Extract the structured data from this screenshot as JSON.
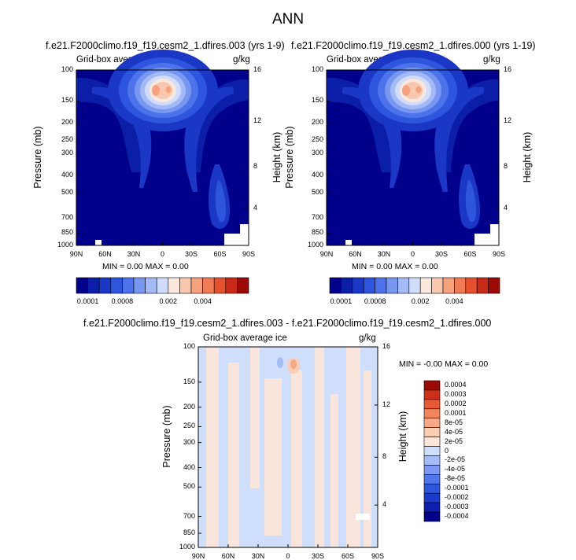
{
  "page_title": "ANN",
  "panel_label_field": "Grid-box average ice",
  "units": "g/kg",
  "y_axis_left": {
    "title": "Pressure (mb)",
    "ticks": [
      "100",
      "150",
      "200",
      "250",
      "300",
      "400",
      "500",
      "700",
      "850",
      "1000"
    ]
  },
  "y_axis_right": {
    "title": "Height (km)",
    "ticks": [
      "16",
      "12",
      "8",
      "4"
    ]
  },
  "x_axis": {
    "ticks": [
      "90N",
      "60N",
      "30N",
      "0",
      "30S",
      "60S",
      "90S"
    ]
  },
  "colors": {
    "scale": [
      "#00008b",
      "#0a1ea8",
      "#1b37c6",
      "#2e55dd",
      "#4d73ea",
      "#7797f1",
      "#a3baf6",
      "#cfdcfb",
      "#fbe8dd",
      "#f9c7ad",
      "#f6a27e",
      "#f07c55",
      "#e5512e",
      "#c82a17",
      "#9b0a06"
    ],
    "diff_scale": [
      "#00008b",
      "#0d1fae",
      "#1a3bc9",
      "#2c57dc",
      "#4f76ea",
      "#7a98f1",
      "#a6bcf6",
      "#cfdefb",
      "#fde6d8",
      "#fbcdb2",
      "#f7a985",
      "#f2855d",
      "#e75a35",
      "#cd2f19",
      "#9b0a06"
    ]
  },
  "chart_data": [
    {
      "type": "heatmap",
      "title": "f.e21.F2000climo.f19_f19.cesm2_1.dfires.003 (yrs 1-9)",
      "field": "Grid-box average ice",
      "units": "g/kg",
      "ylabel": "Pressure (mb)",
      "ylabel_right": "Height (km)",
      "xlim": [
        "90N",
        "90S"
      ],
      "ylim": [
        1000,
        100
      ],
      "min_text": "MIN =   0.00   MAX =   0.00",
      "colorbar_labels": [
        "0.0001",
        "0.0008",
        "0.002",
        "0.004"
      ]
    },
    {
      "type": "heatmap",
      "title": "f.e21.F2000climo.f19_f19.cesm2_1.dfires.000 (yrs 1-19)",
      "field": "Grid-box average ice",
      "units": "g/kg",
      "ylabel": "Pressure (mb)",
      "ylabel_right": "Height (km)",
      "xlim": [
        "90N",
        "90S"
      ],
      "ylim": [
        1000,
        100
      ],
      "min_text": "MIN =   0.00   MAX =   0.00",
      "colorbar_labels": [
        "0.0001",
        "0.0008",
        "0.002",
        "0.004"
      ]
    },
    {
      "type": "heatmap",
      "title": "f.e21.F2000climo.f19_f19.cesm2_1.dfires.003 - f.e21.F2000climo.f19_f19.cesm2_1.dfires.000",
      "field": "Grid-box average ice",
      "units": "g/kg",
      "ylabel": "Pressure (mb)",
      "ylabel_right": "Height (km)",
      "xlim": [
        "90N",
        "90S"
      ],
      "ylim": [
        1000,
        100
      ],
      "min_text": "MIN =  -0.00   MAX =   0.00",
      "colorbar_labels": [
        "0.0004",
        "0.0003",
        "0.0002",
        "0.0001",
        "8e-05",
        "4e-05",
        "2e-05",
        "0",
        "-2e-05",
        "-4e-05",
        "-8e-05",
        "-0.0001",
        "-0.0002",
        "-0.0003",
        "-0.0004"
      ]
    }
  ]
}
